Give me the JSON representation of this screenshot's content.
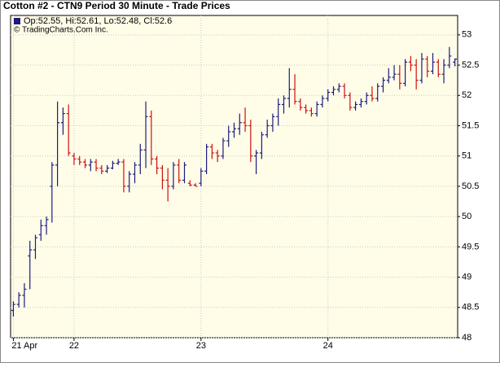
{
  "chart_data": {
    "type": "ohlc",
    "title": "Cotton #2 - CTN9 Period 30 Minute - Trade Prices",
    "legend_text": "Op:52.55, Hi:52.61, Lo:52.48, Cl:52.6",
    "credit": "© TradingCharts.Com Inc.",
    "legend_color": "#1c1c80",
    "up_color": "#1c1c80",
    "down_color": "#cc1111",
    "categories": [
      "21 Apr",
      null,
      null,
      null,
      null,
      null,
      null,
      null,
      null,
      null,
      null,
      "22",
      null,
      null,
      null,
      null,
      null,
      null,
      null,
      null,
      null,
      null,
      null,
      null,
      null,
      null,
      null,
      null,
      null,
      null,
      null,
      null,
      null,
      null,
      "23",
      null,
      null,
      null,
      null,
      null,
      null,
      null,
      null,
      null,
      null,
      null,
      null,
      null,
      null,
      null,
      null,
      null,
      null,
      null,
      null,
      null,
      null,
      "24",
      null,
      null,
      null,
      null,
      null,
      null,
      null,
      null,
      null,
      null,
      null,
      null,
      null,
      null,
      null,
      null,
      null,
      null,
      null,
      null,
      null,
      null,
      null
    ],
    "open": [
      48.45,
      48.55,
      48.7,
      49.35,
      49.45,
      49.7,
      49.85,
      50.5,
      50.85,
      51.55,
      51.7,
      51.0,
      50.95,
      50.9,
      50.85,
      50.9,
      50.8,
      50.75,
      50.8,
      50.88,
      50.9,
      50.5,
      50.7,
      50.85,
      51.1,
      51.65,
      50.95,
      50.8,
      50.6,
      50.5,
      50.85,
      50.6,
      50.55,
      50.52,
      50.55,
      50.75,
      51.15,
      51.05,
      51.0,
      51.25,
      51.4,
      51.45,
      51.55,
      51.5,
      51.0,
      51.05,
      51.35,
      51.5,
      51.65,
      51.85,
      51.95,
      52.1,
      51.9,
      51.8,
      51.75,
      51.7,
      51.85,
      51.95,
      52.05,
      52.1,
      52.15,
      52.0,
      51.8,
      51.85,
      51.9,
      52.0,
      51.95,
      52.15,
      52.25,
      52.3,
      52.35,
      52.2,
      52.55,
      52.5,
      52.25,
      52.6,
      52.4,
      52.55,
      52.35,
      52.5,
      52.55
    ],
    "high": [
      48.6,
      48.75,
      48.9,
      49.6,
      49.7,
      49.95,
      50.0,
      50.9,
      51.9,
      51.8,
      51.85,
      51.05,
      51.0,
      50.95,
      50.95,
      50.95,
      50.85,
      50.85,
      50.92,
      50.95,
      50.95,
      50.75,
      50.9,
      51.2,
      51.9,
      51.75,
      51.0,
      50.85,
      50.8,
      50.9,
      50.95,
      50.9,
      50.6,
      50.55,
      50.8,
      51.2,
      51.2,
      51.1,
      51.3,
      51.5,
      51.55,
      51.7,
      51.8,
      51.6,
      51.1,
      51.4,
      51.6,
      51.7,
      51.95,
      52.0,
      52.45,
      52.35,
      51.95,
      51.85,
      51.8,
      51.9,
      52.0,
      52.1,
      52.15,
      52.2,
      52.2,
      52.05,
      51.9,
      51.95,
      52.05,
      52.15,
      52.2,
      52.3,
      52.45,
      52.5,
      52.5,
      52.6,
      52.65,
      52.6,
      52.7,
      52.65,
      52.7,
      52.6,
      52.6,
      52.8,
      52.61
    ],
    "low": [
      48.35,
      48.5,
      48.5,
      48.8,
      49.3,
      49.6,
      49.7,
      49.9,
      50.5,
      51.35,
      51.0,
      50.85,
      50.85,
      50.8,
      50.75,
      50.75,
      50.7,
      50.72,
      50.78,
      50.85,
      50.4,
      50.4,
      50.55,
      50.7,
      50.8,
      50.85,
      50.7,
      50.45,
      50.25,
      50.45,
      50.55,
      50.55,
      50.5,
      50.5,
      50.5,
      50.7,
      50.95,
      50.9,
      50.95,
      51.15,
      51.3,
      51.35,
      51.4,
      50.9,
      50.7,
      50.95,
      51.3,
      51.4,
      51.5,
      51.7,
      51.8,
      51.85,
      51.75,
      51.7,
      51.65,
      51.65,
      51.8,
      51.9,
      52.0,
      52.05,
      51.95,
      51.75,
      51.75,
      51.8,
      51.85,
      51.9,
      51.9,
      52.05,
      52.2,
      52.25,
      52.1,
      52.15,
      52.4,
      52.1,
      52.2,
      52.3,
      52.35,
      52.3,
      52.2,
      52.45,
      52.48
    ],
    "close": [
      48.55,
      48.7,
      48.8,
      49.45,
      49.65,
      49.85,
      49.95,
      50.85,
      51.55,
      51.7,
      51.05,
      50.95,
      50.9,
      50.85,
      50.9,
      50.8,
      50.75,
      50.8,
      50.88,
      50.9,
      50.5,
      50.7,
      50.85,
      51.1,
      51.65,
      50.95,
      50.8,
      50.6,
      50.5,
      50.85,
      50.6,
      50.85,
      50.52,
      50.5,
      50.75,
      51.15,
      51.05,
      51.0,
      51.25,
      51.4,
      51.45,
      51.55,
      51.5,
      51.0,
      51.05,
      51.35,
      51.5,
      51.65,
      51.85,
      51.95,
      52.1,
      51.9,
      51.8,
      51.75,
      51.7,
      51.85,
      51.95,
      52.05,
      52.1,
      52.15,
      52.0,
      51.8,
      51.85,
      51.9,
      52.0,
      51.95,
      52.15,
      52.25,
      52.3,
      52.35,
      52.2,
      52.55,
      52.5,
      52.25,
      52.6,
      52.4,
      52.55,
      52.35,
      52.5,
      52.65,
      52.6
    ],
    "ylim": [
      48,
      53.32
    ],
    "yticks": [
      48,
      48.5,
      49,
      49.5,
      50,
      50.5,
      51,
      51.5,
      52,
      52.5,
      53
    ],
    "grid": true
  }
}
